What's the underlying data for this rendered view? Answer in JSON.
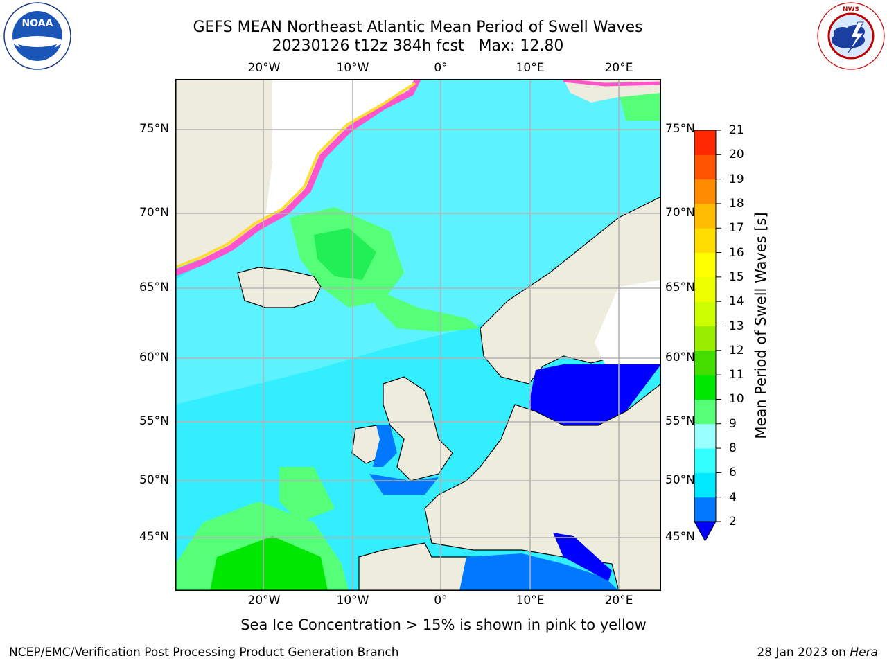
{
  "header": {
    "title_line1": "GEFS MEAN Northeast Atlantic Mean Period of Swell Waves",
    "title_line2": "20230126 t12z 384h fcst   Max: 12.80"
  },
  "logos": {
    "left": "NOAA",
    "left_ring": "NATIONAL OCEANIC AND ATMOSPHERIC ADMINISTRATION · U.S. DEPARTMENT OF COMMERCE",
    "right_ring": "NATIONAL WEATHER SERVICE"
  },
  "map": {
    "lon_labels": [
      "20°W",
      "10°W",
      "0°",
      "10°E",
      "20°E"
    ],
    "lat_labels": [
      "75°N",
      "70°N",
      "65°N",
      "60°N",
      "55°N",
      "50°N",
      "45°N"
    ],
    "colors": {
      "land": "#eeecdc",
      "ocean_base": "#33eeff",
      "grid": "#b3b3b3",
      "coast": "#000000",
      "ice_pink": "#ff55cc",
      "ice_yellow": "#ffdd33"
    }
  },
  "colorbar": {
    "title": "Mean Period of Swell Waves [s]",
    "ticks": [
      "2",
      "4",
      "6",
      "8",
      "9",
      "10",
      "11",
      "12",
      "13",
      "14",
      "15",
      "16",
      "17",
      "18",
      "19",
      "20",
      "21"
    ],
    "colors": [
      "#0078ff",
      "#00e8ff",
      "#33ffff",
      "#99ffff",
      "#55ff77",
      "#00e800",
      "#44dd00",
      "#99ee00",
      "#ccff00",
      "#eeff00",
      "#ffff00",
      "#ffdd00",
      "#ffbb00",
      "#ff8c00",
      "#ff5500",
      "#ff2800",
      "#ff0000"
    ],
    "under_color": "#0000ff"
  },
  "note": "Sea Ice Concentration > 15% is shown in pink to yellow",
  "footer": {
    "left": "NCEP/EMC/Verification Post Processing Product Generation Branch",
    "right_date": "28 Jan 2023 on ",
    "right_host": "Hera"
  }
}
